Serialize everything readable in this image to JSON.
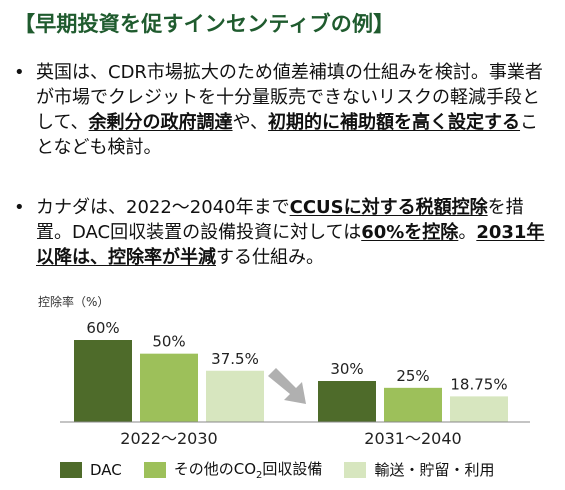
{
  "title": "【早期投資を促すインセンティブの例】",
  "bullets": [
    {
      "dot": "•",
      "seg": [
        "英国は、CDR市場拡大のため値差補填の仕組みを検討。事業者が市場でクレジットを十分量販売できないリスクの軽減手段として、",
        "余剰分の政府調達",
        "や、",
        "初期的に補助額を高く設定する",
        "ことなども検討。"
      ]
    },
    {
      "dot": "•",
      "seg": [
        "カナダは、2022～2040年まで",
        "CCUSに対する税額控除",
        "を措置。DAC回収装置の設備投資に対しては",
        "60%を控除",
        "。",
        "2031年以降は、控除率が半減",
        "する仕組み。"
      ]
    }
  ],
  "chart_data": {
    "type": "bar",
    "ylabel": "控除率（%）",
    "categories": [
      "2022～2030",
      "2031～2040"
    ],
    "series": [
      {
        "name": "DAC",
        "values": [
          60,
          30
        ],
        "labels": [
          "60%",
          "30%"
        ],
        "color": "#4e6b2a"
      },
      {
        "name": "その他のCO2回収設備",
        "values": [
          50,
          25
        ],
        "labels": [
          "50%",
          "25%"
        ],
        "color": "#9dc05a"
      },
      {
        "name": "輸送・貯留・利用",
        "values": [
          37.5,
          18.75
        ],
        "labels": [
          "37.5%",
          "18.75%"
        ],
        "color": "#d7e6bf"
      }
    ],
    "ylim": [
      0,
      60
    ],
    "arrow_color": "#b0b0b0"
  },
  "legend": {
    "dac": "DAC",
    "other_prefix": "その他のCO",
    "other_sub": "2",
    "other_suffix": "回収設備",
    "transport": "輸送・貯留・利用"
  }
}
